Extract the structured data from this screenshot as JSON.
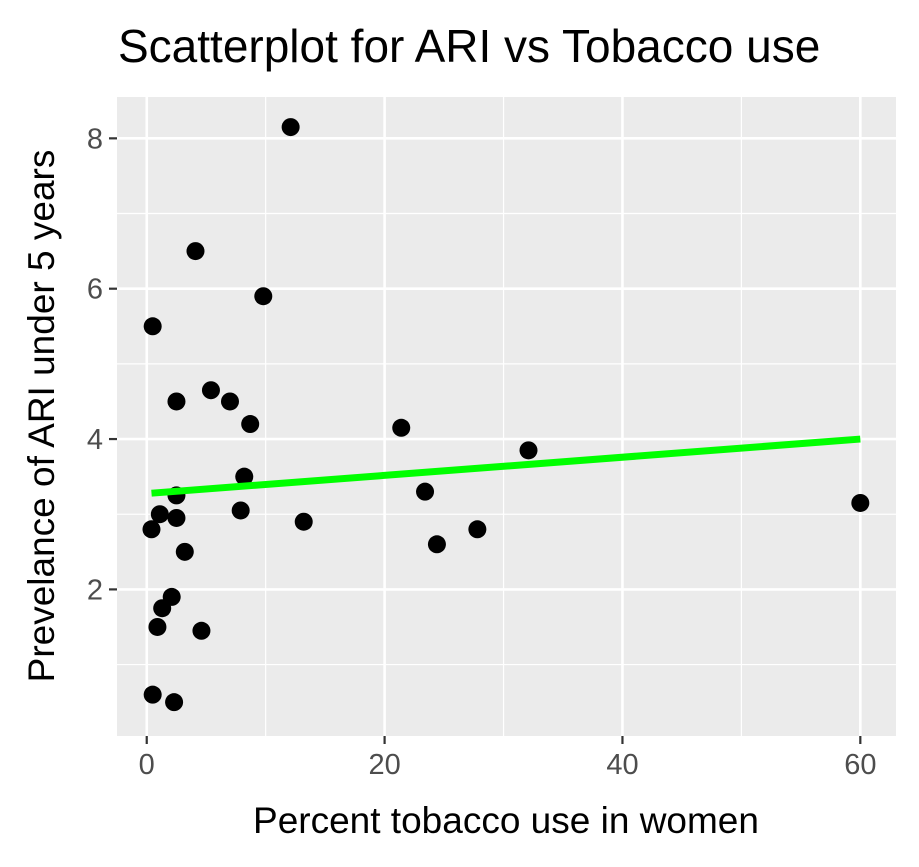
{
  "chart_data": {
    "type": "scatter",
    "title": "Scatterplot for ARI vs Tobacco use",
    "xlabel": "Percent tobacco use in women",
    "ylabel": "Prevelance of ARI under 5 years",
    "xlim": [
      -2.5,
      63.0
    ],
    "ylim": [
      0.05,
      8.55
    ],
    "x_ticks": [
      0,
      20,
      40,
      60
    ],
    "x_tick_labels": [
      "0",
      "20",
      "40",
      "60"
    ],
    "y_ticks": [
      2,
      4,
      6,
      8
    ],
    "y_tick_labels": [
      "2",
      "4",
      "6",
      "8"
    ],
    "grid": true,
    "legend": "none",
    "points": [
      {
        "x": 12.1,
        "y": 8.15
      },
      {
        "x": 4.1,
        "y": 6.5
      },
      {
        "x": 9.8,
        "y": 5.9
      },
      {
        "x": 0.5,
        "y": 5.5
      },
      {
        "x": 5.4,
        "y": 4.65
      },
      {
        "x": 2.5,
        "y": 4.5
      },
      {
        "x": 7.0,
        "y": 4.5
      },
      {
        "x": 8.7,
        "y": 4.2
      },
      {
        "x": 21.4,
        "y": 4.15
      },
      {
        "x": 32.1,
        "y": 3.85
      },
      {
        "x": 8.2,
        "y": 3.5
      },
      {
        "x": 23.4,
        "y": 3.3
      },
      {
        "x": 2.5,
        "y": 3.25
      },
      {
        "x": 60.0,
        "y": 3.15
      },
      {
        "x": 7.9,
        "y": 3.05
      },
      {
        "x": 1.1,
        "y": 3.0
      },
      {
        "x": 2.5,
        "y": 2.95
      },
      {
        "x": 13.2,
        "y": 2.9
      },
      {
        "x": 0.4,
        "y": 2.8
      },
      {
        "x": 27.8,
        "y": 2.8
      },
      {
        "x": 24.4,
        "y": 2.6
      },
      {
        "x": 3.2,
        "y": 2.5
      },
      {
        "x": 2.1,
        "y": 1.9
      },
      {
        "x": 1.3,
        "y": 1.75
      },
      {
        "x": 0.9,
        "y": 1.5
      },
      {
        "x": 4.6,
        "y": 1.45
      },
      {
        "x": 0.5,
        "y": 0.6
      },
      {
        "x": 2.3,
        "y": 0.5
      }
    ],
    "trend_line": {
      "x": [
        0.4,
        60.0
      ],
      "y": [
        3.28,
        4.0
      ],
      "color": "#00ff00"
    },
    "colors": {
      "panel": "#ebebeb",
      "grid": "#ffffff",
      "point": "#000000",
      "tick": "#333333"
    }
  }
}
